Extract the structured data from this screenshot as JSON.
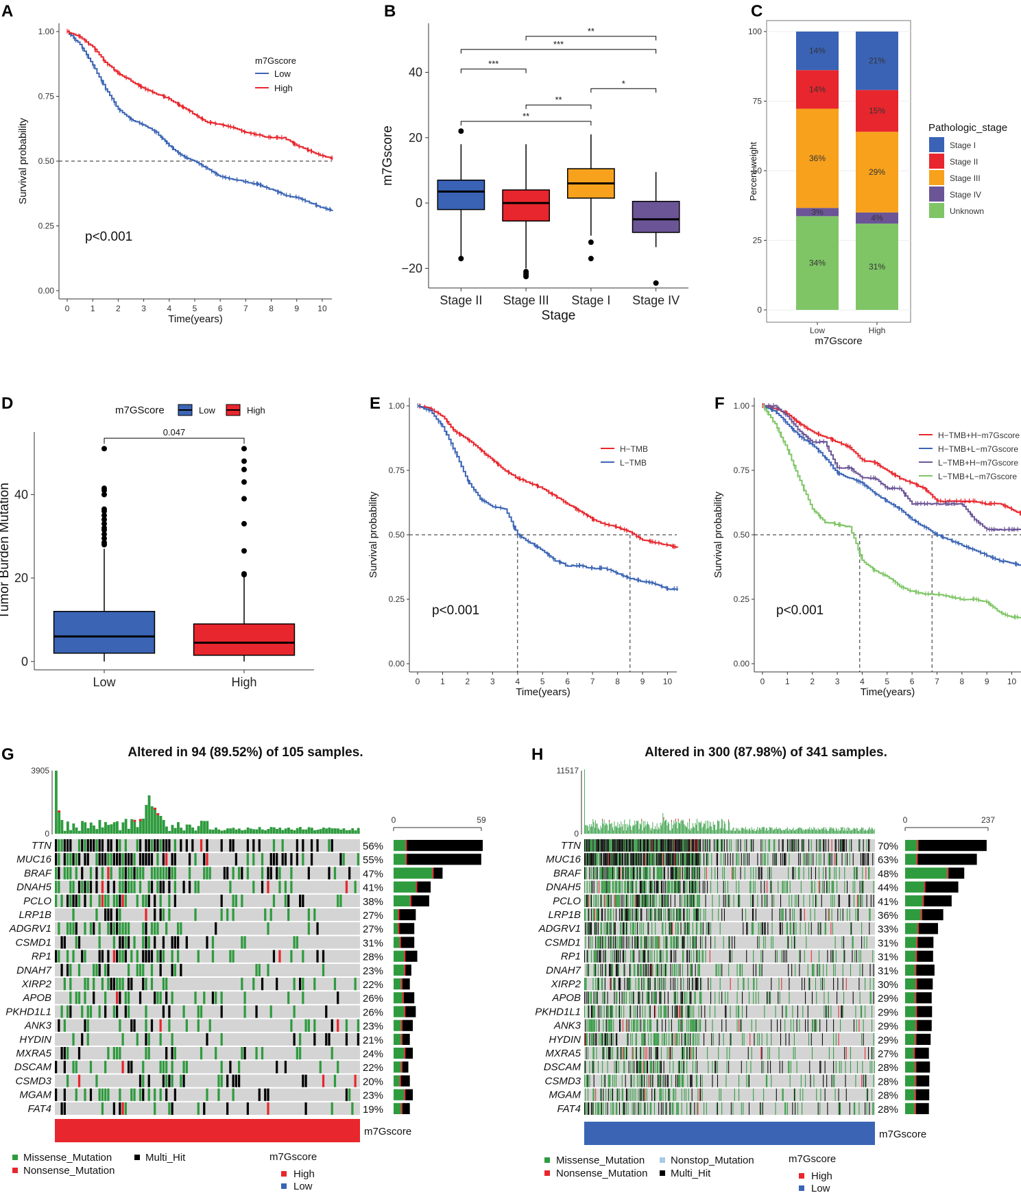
{
  "figure": {
    "panel_labels": [
      "A",
      "B",
      "C",
      "D",
      "E",
      "F",
      "G",
      "H"
    ]
  },
  "colors": {
    "low": "#3b64b4",
    "high": "#e8262d",
    "stage_I": "#3a63b6",
    "stage_II": "#e8262d",
    "stage_III": "#f7a11d",
    "stage_IV": "#6b5596",
    "unknown": "#7fc566",
    "missense": "#2e9b3e",
    "nonsense": "#e8262d",
    "multi_hit": "#000000",
    "nonstop": "#a6cbe3",
    "no_mut": "#d4d4d4",
    "km_hh": "#e8262d",
    "km_hl": "#3b64b4",
    "km_lh": "#6b5596",
    "km_ll": "#7fc566"
  },
  "chart_data": [
    {
      "id": "A",
      "type": "line",
      "title": "",
      "xlabel": "Time(years)",
      "ylabel": "Survival probability",
      "xlim": [
        0,
        10.4
      ],
      "ylim": [
        0,
        1
      ],
      "xticks": [
        "0",
        "1",
        "2",
        "3",
        "4",
        "5",
        "6",
        "7",
        "8",
        "9",
        "10"
      ],
      "yticks": [
        "0.00",
        "0.25",
        "0.50",
        "0.75",
        "1.00"
      ],
      "legend_title": "m7Gscore",
      "annotation": "p<0.001",
      "median_line": {
        "y": 0.5,
        "x_end": 5.1
      },
      "series": [
        {
          "name": "Low",
          "color": "#3b64b4",
          "x": [
            0,
            0.5,
            1,
            1.5,
            2,
            2.5,
            3,
            3.5,
            4,
            4.5,
            5,
            5.5,
            6,
            6.5,
            7,
            7.5,
            8,
            8.5,
            9,
            9.5,
            10,
            10.4
          ],
          "y": [
            1.0,
            0.95,
            0.87,
            0.78,
            0.7,
            0.66,
            0.64,
            0.61,
            0.56,
            0.52,
            0.5,
            0.47,
            0.44,
            0.43,
            0.42,
            0.41,
            0.39,
            0.37,
            0.36,
            0.34,
            0.32,
            0.31
          ]
        },
        {
          "name": "High",
          "color": "#e8262d",
          "x": [
            0,
            0.5,
            1,
            1.5,
            2,
            2.5,
            3,
            3.5,
            4,
            4.5,
            5,
            5.5,
            6,
            6.5,
            7,
            7.5,
            8,
            8.5,
            9,
            9.5,
            10,
            10.4
          ],
          "y": [
            1.0,
            0.98,
            0.94,
            0.88,
            0.84,
            0.81,
            0.78,
            0.76,
            0.74,
            0.71,
            0.68,
            0.65,
            0.64,
            0.63,
            0.61,
            0.6,
            0.59,
            0.59,
            0.56,
            0.54,
            0.52,
            0.51
          ]
        }
      ]
    },
    {
      "id": "B",
      "type": "box",
      "xlabel": "Stage",
      "ylabel": "m7Gscore",
      "ylim": [
        -26,
        55
      ],
      "yticks": [
        "-20",
        "0",
        "20",
        "40"
      ],
      "categories": [
        "Stage II",
        "Stage III",
        "Stage I",
        "Stage IV"
      ],
      "colors": [
        "#3a63b6",
        "#e8262d",
        "#f7a11d",
        "#6b5596"
      ],
      "boxes": [
        {
          "min": -17,
          "q1": -2,
          "median": 3.5,
          "q3": 7,
          "max": 18,
          "outliers": [
            22,
            -17
          ]
        },
        {
          "min": -20,
          "q1": -5.5,
          "median": 0,
          "q3": 4,
          "max": 18,
          "outliers": [
            -21,
            -21.5,
            -22,
            -22.5
          ]
        },
        {
          "min": -10,
          "q1": 1.5,
          "median": 6,
          "q3": 10.5,
          "max": 21,
          "outliers": [
            -12,
            -17
          ]
        },
        {
          "min": -13.5,
          "q1": -9,
          "median": -5,
          "q3": 0.5,
          "max": 9.5,
          "outliers": [
            -24.5
          ]
        }
      ],
      "significance": [
        {
          "from": 1,
          "to": 3,
          "label": "**",
          "level": 51
        },
        {
          "from": 0,
          "to": 3,
          "label": "***",
          "level": 47
        },
        {
          "from": 0,
          "to": 1,
          "label": "***",
          "level": 41
        },
        {
          "from": 2,
          "to": 3,
          "label": "*",
          "level": 35
        },
        {
          "from": 1,
          "to": 2,
          "label": "**",
          "level": 30
        },
        {
          "from": 0,
          "to": 2,
          "label": "**",
          "level": 25
        }
      ]
    },
    {
      "id": "C",
      "type": "bar",
      "xlabel": "m7Gscore",
      "ylabel": "Percent weight",
      "ylim": [
        0,
        100
      ],
      "yticks": [
        "0",
        "25",
        "50",
        "75",
        "100"
      ],
      "categories": [
        "Low",
        "High"
      ],
      "legend_title": "Pathologic_stage",
      "legend": [
        "Stage I",
        "Stage II",
        "Stage III",
        "Stage IV",
        "Unknown"
      ],
      "series": [
        {
          "name": "Unknown",
          "values": [
            34,
            31
          ],
          "labels": [
            "34%",
            "31%"
          ]
        },
        {
          "name": "Stage IV",
          "values": [
            3,
            4
          ],
          "labels": [
            "3%",
            "4%"
          ]
        },
        {
          "name": "Stage III",
          "values": [
            36,
            29
          ],
          "labels": [
            "36%",
            "29%"
          ]
        },
        {
          "name": "Stage II",
          "values": [
            14,
            15
          ],
          "labels": [
            "14%",
            "15%"
          ]
        },
        {
          "name": "Stage I",
          "values": [
            14,
            21
          ],
          "labels": [
            "14%",
            "21%"
          ]
        }
      ]
    },
    {
      "id": "D",
      "type": "box",
      "xlabel": "",
      "ylabel": "Tumor Burden Mutation",
      "ylim": [
        -2,
        55
      ],
      "yticks": [
        "0",
        "20",
        "40"
      ],
      "legend_title": "m7GScore",
      "legend": [
        "Low",
        "High"
      ],
      "categories": [
        "Low",
        "High"
      ],
      "boxes": [
        {
          "min": 0,
          "q1": 2,
          "median": 6,
          "q3": 12,
          "max": 27,
          "outliers": [
            51,
            41.5,
            41,
            40,
            36.5,
            36,
            35,
            34,
            33,
            32,
            31.5,
            30.5,
            29.5,
            28.5,
            28
          ]
        },
        {
          "min": 0,
          "q1": 1.5,
          "median": 4.5,
          "q3": 9,
          "max": 20.5,
          "outliers": [
            51,
            48,
            46,
            43,
            39,
            33,
            26.5,
            21,
            20.8
          ]
        }
      ],
      "significance": {
        "label": "0.047"
      }
    },
    {
      "id": "E",
      "type": "line",
      "xlabel": "Time(years)",
      "ylabel": "Survival probability",
      "xlim": [
        0,
        10.4
      ],
      "ylim": [
        0,
        1
      ],
      "xticks": [
        "0",
        "1",
        "2",
        "3",
        "4",
        "5",
        "6",
        "7",
        "8",
        "9",
        "10"
      ],
      "yticks": [
        "0.00",
        "0.25",
        "0.50",
        "0.75",
        "1.00"
      ],
      "annotation": "p<0.001",
      "median_lines": [
        4.0,
        8.5
      ],
      "series": [
        {
          "name": "H−TMB",
          "color": "#e8262d",
          "x": [
            0,
            0.5,
            1,
            1.5,
            2,
            2.5,
            3,
            3.5,
            4,
            4.5,
            5,
            5.5,
            6,
            6.5,
            7,
            7.5,
            8,
            8.5,
            9,
            9.5,
            10,
            10.4
          ],
          "y": [
            1.0,
            0.99,
            0.96,
            0.9,
            0.87,
            0.83,
            0.79,
            0.75,
            0.72,
            0.7,
            0.68,
            0.65,
            0.62,
            0.59,
            0.56,
            0.54,
            0.53,
            0.51,
            0.48,
            0.47,
            0.46,
            0.45
          ]
        },
        {
          "name": "L−TMB",
          "color": "#3b64b4",
          "x": [
            0,
            0.5,
            1,
            1.5,
            2,
            2.5,
            3,
            3.5,
            4,
            4.5,
            5,
            5.5,
            6,
            6.5,
            7,
            7.5,
            8,
            8.5,
            9,
            9.5,
            10,
            10.4
          ],
          "y": [
            1.0,
            0.98,
            0.92,
            0.82,
            0.71,
            0.64,
            0.61,
            0.6,
            0.5,
            0.47,
            0.44,
            0.4,
            0.38,
            0.38,
            0.37,
            0.37,
            0.35,
            0.33,
            0.32,
            0.31,
            0.29,
            0.29
          ]
        }
      ]
    },
    {
      "id": "F",
      "type": "line",
      "xlabel": "Time(years)",
      "ylabel": "Survival probability",
      "xlim": [
        0,
        10.4
      ],
      "ylim": [
        0,
        1
      ],
      "xticks": [
        "0",
        "1",
        "2",
        "3",
        "4",
        "5",
        "6",
        "7",
        "8",
        "9",
        "10"
      ],
      "yticks": [
        "0.00",
        "0.25",
        "0.50",
        "0.75",
        "1.00"
      ],
      "annotation": "p<0.001",
      "median_lines": [
        3.9,
        6.8
      ],
      "series": [
        {
          "name": "H−TMB+H−m7Gscore",
          "color": "#e8262d",
          "x": [
            0,
            0.5,
            1,
            1.5,
            2,
            2.5,
            3,
            3.5,
            4,
            4.5,
            5,
            5.5,
            6,
            6.5,
            7,
            7.5,
            8,
            8.5,
            9,
            9.5,
            10,
            10.4
          ],
          "y": [
            1.0,
            0.99,
            0.97,
            0.93,
            0.9,
            0.88,
            0.86,
            0.84,
            0.79,
            0.78,
            0.75,
            0.72,
            0.7,
            0.68,
            0.63,
            0.63,
            0.63,
            0.63,
            0.62,
            0.62,
            0.6,
            0.58
          ]
        },
        {
          "name": "H−TMB+L−m7Gscore",
          "color": "#3b64b4",
          "x": [
            0,
            0.5,
            1,
            1.5,
            2,
            2.5,
            3,
            3.5,
            4,
            4.5,
            5,
            5.5,
            6,
            6.5,
            7,
            7.5,
            8,
            8.5,
            9,
            9.5,
            10,
            10.4
          ],
          "y": [
            1.0,
            0.98,
            0.93,
            0.88,
            0.85,
            0.8,
            0.74,
            0.72,
            0.7,
            0.66,
            0.63,
            0.6,
            0.56,
            0.53,
            0.5,
            0.48,
            0.46,
            0.44,
            0.42,
            0.4,
            0.39,
            0.38
          ]
        },
        {
          "name": "L−TMB+H−m7Gscore",
          "color": "#6b5596",
          "x": [
            0,
            0.5,
            1,
            1.5,
            2,
            2.5,
            3,
            3.5,
            4,
            4.5,
            5,
            5.5,
            6,
            6.5,
            7,
            7.5,
            8,
            8.5,
            9,
            9.5,
            10,
            10.4
          ],
          "y": [
            1.0,
            1.0,
            0.96,
            0.9,
            0.86,
            0.86,
            0.76,
            0.76,
            0.72,
            0.72,
            0.68,
            0.68,
            0.62,
            0.62,
            0.62,
            0.62,
            0.62,
            0.56,
            0.52,
            0.52,
            0.52,
            0.52
          ]
        },
        {
          "name": "L−TMB+L−m7Gscore",
          "color": "#7fc566",
          "x": [
            0,
            0.5,
            1,
            1.5,
            2,
            2.5,
            3,
            3.5,
            4,
            4.5,
            5,
            5.5,
            6,
            6.5,
            7,
            7.5,
            8,
            8.5,
            9,
            9.5,
            10,
            10.4
          ],
          "y": [
            1.0,
            0.93,
            0.83,
            0.71,
            0.6,
            0.55,
            0.54,
            0.53,
            0.4,
            0.36,
            0.34,
            0.3,
            0.28,
            0.27,
            0.27,
            0.26,
            0.25,
            0.25,
            0.24,
            0.2,
            0.18,
            0.18
          ]
        }
      ]
    },
    {
      "id": "G",
      "type": "heatmap",
      "title": "Altered in 94 (89.52%) of 105 samples.",
      "top_max": "3905",
      "top_min": "0",
      "right_max": "59",
      "right_min": "0",
      "n_samples": 105,
      "genes": [
        "TTN",
        "MUC16",
        "BRAF",
        "DNAH5",
        "PCLO",
        "LRP1B",
        "ADGRV1",
        "CSMD1",
        "RP1",
        "DNAH7",
        "XIRP2",
        "APOB",
        "PKHD1L1",
        "ANK3",
        "HYDIN",
        "MXRA5",
        "DSCAM",
        "CSMD3",
        "MGAM",
        "FAT4"
      ],
      "percent": [
        "56%",
        "55%",
        "47%",
        "41%",
        "38%",
        "27%",
        "27%",
        "31%",
        "28%",
        "23%",
        "22%",
        "26%",
        "26%",
        "23%",
        "21%",
        "24%",
        "22%",
        "20%",
        "23%",
        "19%"
      ],
      "right_missense": [
        8,
        8,
        26,
        15,
        11,
        3,
        3,
        4,
        7,
        7,
        5,
        6,
        7,
        5,
        5,
        7,
        5,
        4,
        7,
        5
      ],
      "right_multi": [
        51,
        50,
        6,
        9,
        12,
        11,
        10,
        9,
        8,
        4,
        5,
        7,
        7,
        7,
        5,
        5,
        4,
        6,
        5,
        5
      ],
      "annotation_label": "m7Gscore",
      "annotation_color": "#e8262d"
    },
    {
      "id": "H",
      "type": "heatmap",
      "title": "Altered in 300 (87.98%) of 341 samples.",
      "top_max": "11517",
      "top_min": "0",
      "right_max": "237",
      "right_min": "0",
      "n_samples": 341,
      "genes": [
        "TTN",
        "MUC16",
        "BRAF",
        "DNAH5",
        "PCLO",
        "LRP1B",
        "ADGRV1",
        "CSMD1",
        "RP1",
        "DNAH7",
        "XIRP2",
        "APOB",
        "PKHD1L1",
        "ANK3",
        "HYDIN",
        "MXRA5",
        "DSCAM",
        "CSMD3",
        "MGAM",
        "FAT4"
      ],
      "percent": [
        "70%",
        "63%",
        "48%",
        "44%",
        "41%",
        "36%",
        "33%",
        "31%",
        "31%",
        "31%",
        "30%",
        "29%",
        "29%",
        "29%",
        "29%",
        "27%",
        "28%",
        "28%",
        "28%",
        "28%"
      ],
      "right_missense": [
        34,
        32,
        120,
        54,
        50,
        45,
        35,
        32,
        30,
        28,
        30,
        28,
        30,
        30,
        28,
        24,
        28,
        28,
        27,
        27
      ],
      "right_multi": [
        195,
        169,
        45,
        94,
        79,
        60,
        55,
        45,
        46,
        52,
        45,
        44,
        43,
        42,
        41,
        40,
        39,
        37,
        38,
        37
      ],
      "annotation_label": "m7Gscore",
      "annotation_color": "#3b64b4"
    }
  ],
  "legends": {
    "G": {
      "mutation_items": [
        "Missense_Mutation",
        "Multi_Hit",
        "Nonsense_Mutation"
      ],
      "score_title": "m7Gscore",
      "score_items": [
        "High",
        "Low"
      ]
    },
    "H": {
      "mutation_items": [
        "Missense_Mutation",
        "Nonstop_Mutation",
        "Nonsense_Mutation",
        "Multi_Hit"
      ],
      "score_title": "m7Gscore",
      "score_items": [
        "High",
        "Low"
      ]
    }
  }
}
